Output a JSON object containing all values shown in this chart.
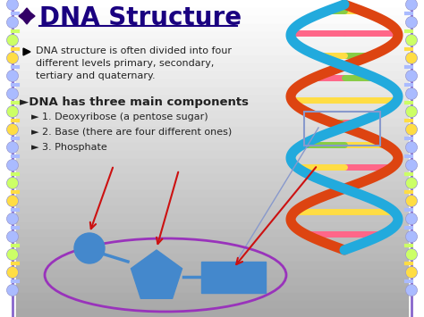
{
  "title": "DNA Structure",
  "title_color": "#1a0080",
  "bg_color": "#ffffff",
  "bg_gradient_bottom": "#aaaaaa",
  "bullet1_text": "DNA structure is often divided into four\ndifferent levels primary, secondary,\ntertiary and quaternary.",
  "header2": "►DNA has three main components",
  "sub1": "► 1. Deoxyribose (a pentose sugar)",
  "sub2": "► 2. Base (there are four different ones)",
  "sub3": "► 3. Phosphate",
  "text_color": "#222222",
  "blue_shape": "#4488cc",
  "ellipse_color": "#9933bb",
  "arrow_color": "#cc1111",
  "connector_color": "#4488cc",
  "diamond_color": "#330066",
  "border_dot_colors": [
    "#aabbff",
    "#aabbff",
    "#ccff66",
    "#ffdd44",
    "#aabbff",
    "#aabbff",
    "#ccff66",
    "#ffdd44",
    "#aabbff",
    "#aabbff",
    "#ccff66",
    "#ffdd44",
    "#aabbff",
    "#aabbff",
    "#ccff66",
    "#ffdd44",
    "#aabbff"
  ],
  "border_line_color": "#8866cc",
  "dna_helix_orange": "#dd4411",
  "dna_helix_blue": "#22aadd",
  "dna_base_colors": [
    "#ffdd44",
    "#ff6688",
    "#88cc44",
    "#ff6688",
    "#ffdd44",
    "#88cc44",
    "#ffdd44",
    "#ff6688",
    "#88cc44",
    "#ffdd44",
    "#ff6688"
  ],
  "dna_highlight_rect": "#8899cc"
}
